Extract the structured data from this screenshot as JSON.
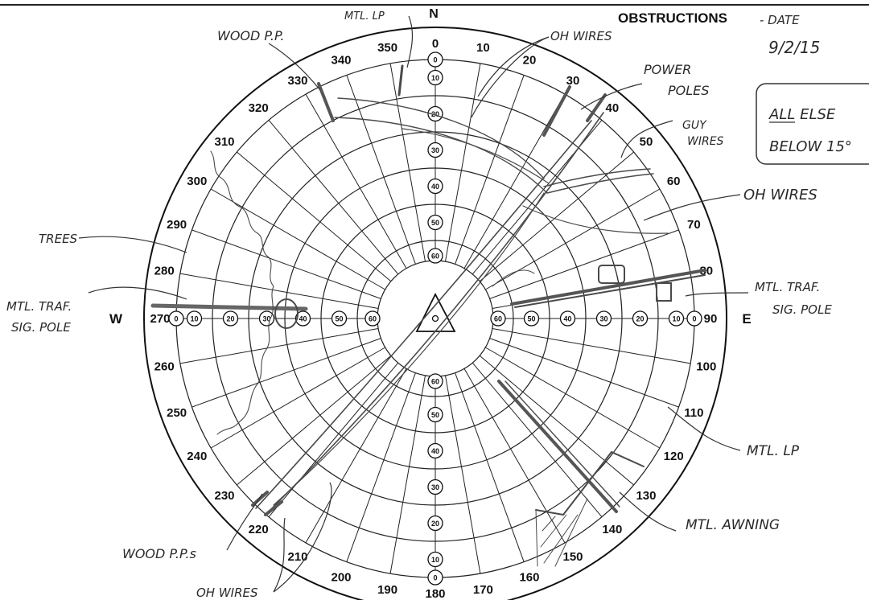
{
  "header": {
    "title": "OBSTRUCTIONS",
    "date_label": "- DATE",
    "date_value": "9/2/15"
  },
  "note": {
    "line1": "ALL ELSE",
    "line2": "BELOW 15°"
  },
  "cardinals": {
    "north": "N",
    "east": "E",
    "west": "W"
  },
  "azimuth_labels": [
    "0",
    "10",
    "20",
    "30",
    "40",
    "50",
    "60",
    "70",
    "80",
    "90",
    "100",
    "110",
    "120",
    "130",
    "140",
    "150",
    "160",
    "170",
    "180",
    "190",
    "200",
    "210",
    "220",
    "230",
    "240",
    "250",
    "260",
    "270",
    "280",
    "290",
    "300",
    "310",
    "320",
    "330",
    "340",
    "350"
  ],
  "elevation_labels": [
    "0",
    "10",
    "20",
    "30",
    "40",
    "50",
    "60"
  ],
  "annotations": {
    "wood_pp": "WOOD P.P.",
    "mtl_lp_top": "MTL. LP",
    "oh_wires_top": "OH WIRES",
    "power_poles_1": "POWER",
    "power_poles_2": "POLES",
    "guy_wires_1": "GUY",
    "guy_wires_2": "WIRES",
    "oh_wires_right": "OH WIRES",
    "trees": "TREES",
    "mtl_traf_left_1": "MTL. TRAF.",
    "mtl_traf_left_2": "SIG. POLE",
    "mtl_traf_right_1": "MTL. TRAF.",
    "mtl_traf_right_2": "SIG. POLE",
    "mtl_lp_right": "MTL. LP",
    "mtl_awning": "MTL. AWNING",
    "wood_pps": "WOOD P.P.s",
    "oh_wires_bottom": "OH WIRES"
  }
}
